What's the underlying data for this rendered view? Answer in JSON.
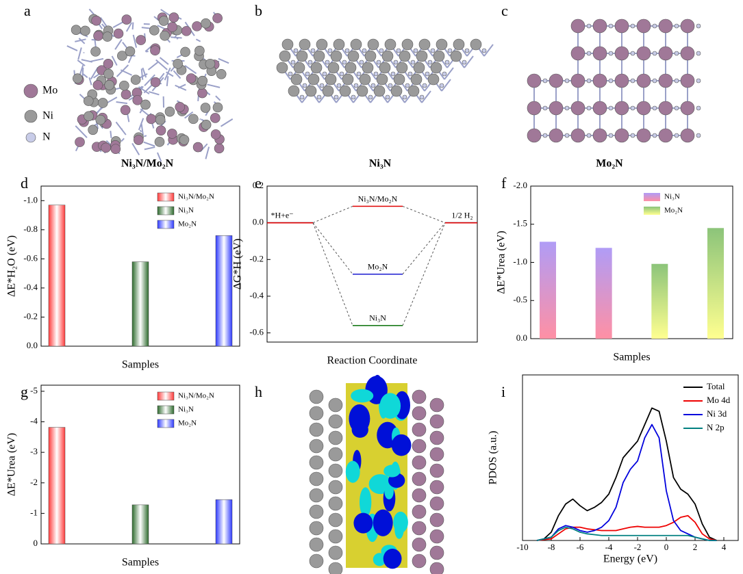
{
  "figure": {
    "panel_labels": [
      "a",
      "b",
      "c",
      "d",
      "e",
      "f",
      "g",
      "h",
      "i"
    ],
    "structure_captions": [
      "Ni₃N/Mo₂N",
      "Ni₃N",
      "Mo₂N"
    ],
    "legend_a": [
      "Mo",
      "Ni",
      "N"
    ]
  },
  "chart_data": [
    {
      "type": "bar",
      "x_label": "Samples",
      "y_label": "ΔE*H₂O (eV)",
      "categories": [
        null,
        null,
        null
      ],
      "series": [
        {
          "name": "Ni₃N/Mo₂N",
          "color": "#ff3b3b",
          "values": [
            -0.97,
            null,
            null
          ]
        },
        {
          "name": "Ni₃N",
          "color": "#2e6b2e",
          "values": [
            null,
            -0.58,
            null
          ]
        },
        {
          "name": "Mo₂N",
          "color": "#2f3bff",
          "values": [
            null,
            null,
            -0.76
          ]
        }
      ],
      "ylim": [
        0,
        -1.1
      ],
      "yticks": [
        {
          "value": 0,
          "label": "0.0"
        },
        -0.2,
        -0.4,
        -0.6,
        -0.8,
        {
          "value": -1,
          "label": "-1.0"
        }
      ],
      "legend": "upper right"
    },
    {
      "type": "energy",
      "x_label": "Reaction Coordinate",
      "y_label": "ΔG*H (eV)",
      "series": [
        {
          "name": "Ni₃N/Mo₂N",
          "color": "#e00000",
          "values": [
            0,
            0.09,
            0
          ]
        },
        {
          "name": "Mo₂N",
          "color": "#1a1ad0",
          "values": [
            0,
            -0.28,
            0
          ]
        },
        {
          "name": "Ni₃N",
          "color": "#1a7a1a",
          "values": [
            0,
            -0.56,
            0
          ]
        }
      ],
      "annotations": [
        "*H+e⁻",
        "1/2 H₂"
      ],
      "ylim": [
        -0.65,
        0.2
      ],
      "yticks": [
        0.2,
        {
          "value": 0,
          "label": "0.0"
        },
        -0.2,
        -0.4,
        -0.6
      ]
    },
    {
      "type": "bar",
      "x_label": "Samples",
      "y_label": "ΔE*Urea (eV)",
      "categories": [
        null,
        null,
        null,
        null
      ],
      "series": [
        {
          "name": "Ni₃N",
          "colors": [
            "#b09cf6",
            "#ff90a4"
          ],
          "values": [
            -1.27,
            -1.19,
            null,
            null
          ]
        },
        {
          "name": "Mo₂N",
          "colors": [
            "#8cc47a",
            "#ffff90"
          ],
          "values": [
            null,
            null,
            -0.98,
            -1.45
          ]
        }
      ],
      "ylim": [
        0,
        -2.0
      ],
      "yticks": [
        {
          "value": 0,
          "label": "0.0"
        },
        -0.5,
        {
          "value": -1,
          "label": "-1.0"
        },
        -1.5,
        {
          "value": -2,
          "label": "-2.0"
        }
      ],
      "legend": "upper right"
    },
    {
      "type": "bar",
      "x_label": "Samples",
      "y_label": "ΔE*Urea (eV)",
      "categories": [
        null,
        null,
        null
      ],
      "series": [
        {
          "name": "Ni₃N/Mo₂N",
          "color": "#ff3b3b",
          "values": [
            -3.82,
            null,
            null
          ]
        },
        {
          "name": "Ni₃N",
          "color": "#2e6b2e",
          "values": [
            null,
            -1.28,
            null
          ]
        },
        {
          "name": "Mo₂N",
          "color": "#2f3bff",
          "values": [
            null,
            null,
            -1.45
          ]
        }
      ],
      "ylim": [
        0,
        -5.2
      ],
      "yticks": [
        0,
        -1,
        -2,
        -3,
        -4,
        -5
      ],
      "legend": "upper right"
    },
    {
      "type": "line",
      "x_label": "Energy (eV)",
      "y_label": "PDOS (a.u.)",
      "x": [
        -9,
        -8.5,
        -8,
        -7.5,
        -7,
        -6.5,
        -6,
        -5.5,
        -5,
        -4.5,
        -4,
        -3.5,
        -3,
        -2.5,
        -2,
        -1.5,
        -1,
        -0.5,
        0,
        0.5,
        1,
        1.5,
        2,
        2.5,
        3,
        3.5
      ],
      "series": [
        {
          "name": "Total",
          "color": "#000000",
          "values": [
            0,
            1,
            5,
            15,
            22,
            25,
            21,
            18,
            20,
            23,
            28,
            38,
            50,
            55,
            60,
            70,
            80,
            78,
            60,
            38,
            31,
            28,
            22,
            10,
            2,
            0
          ]
        },
        {
          "name": "Mo 4d",
          "color": "#ee0000",
          "values": [
            0,
            0.5,
            1,
            4,
            7,
            8,
            8,
            7,
            6.5,
            6,
            6,
            6,
            7,
            8,
            8.5,
            8,
            8,
            8,
            9,
            11,
            14,
            15,
            11,
            4,
            1,
            0
          ]
        },
        {
          "name": "Ni 3d",
          "color": "#0000dd",
          "values": [
            0,
            1,
            2,
            7,
            9,
            8,
            6,
            5,
            6,
            8,
            12,
            20,
            35,
            43,
            48,
            62,
            70,
            62,
            30,
            12,
            6,
            4,
            2,
            1,
            0,
            0
          ]
        },
        {
          "name": "N 2p",
          "color": "#008080",
          "values": [
            0,
            1,
            2,
            6,
            8,
            7,
            5,
            4,
            3.5,
            3,
            3,
            3,
            3,
            3,
            3,
            3,
            3,
            3,
            3,
            3,
            3,
            3,
            2,
            1,
            0,
            0
          ]
        }
      ],
      "xlim": [
        -10,
        5
      ],
      "xticks": [
        -10,
        -8,
        -6,
        -4,
        -2,
        0,
        2,
        4
      ],
      "ylim": [
        0,
        100
      ],
      "legend": "upper right"
    }
  ]
}
